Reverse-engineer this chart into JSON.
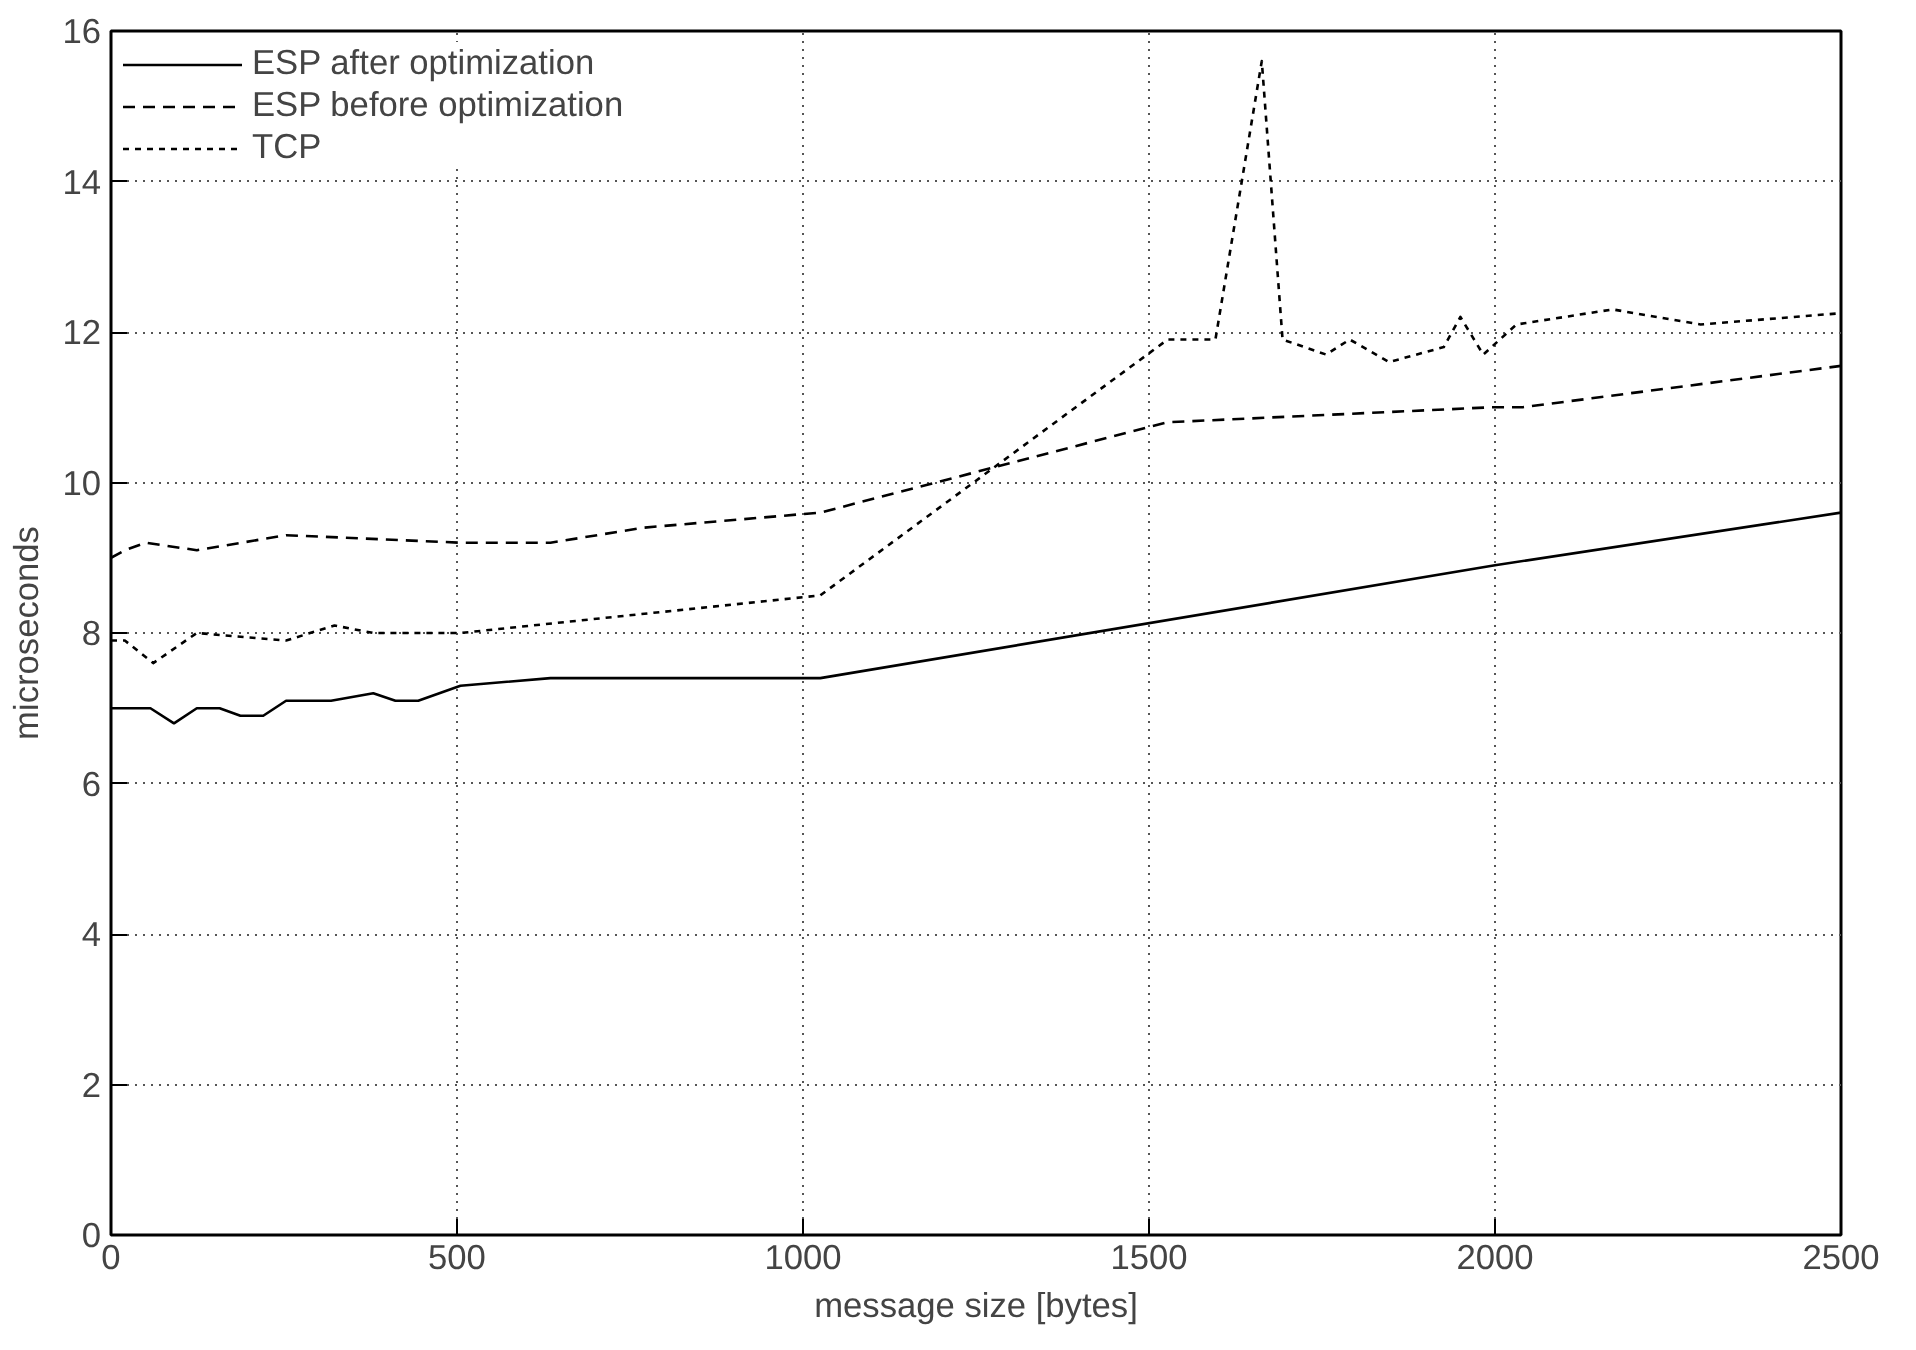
{
  "chart_data": {
    "type": "line",
    "xlabel": "message size [bytes]",
    "ylabel": "microseconds",
    "xlim": [
      0,
      2500
    ],
    "ylim": [
      0,
      16
    ],
    "xticks": [
      0,
      500,
      1000,
      1500,
      2000,
      2500
    ],
    "yticks": [
      0,
      2,
      4,
      6,
      8,
      10,
      12,
      14,
      16
    ],
    "grid": true,
    "legend": "top left",
    "marker": "none",
    "series": [
      {
        "name": "ESP after optimization",
        "color": "#000000",
        "line_style": "solid",
        "x": [
          0,
          57,
          91,
          124,
          157,
          187,
          220,
          253,
          318,
          379,
          411,
          444,
          505,
          635,
          1025,
          2000,
          2500
        ],
        "values": [
          7.0,
          7.0,
          6.8,
          7.0,
          7.0,
          6.9,
          6.9,
          7.1,
          7.1,
          7.2,
          7.1,
          7.1,
          7.3,
          7.4,
          7.4,
          8.9,
          9.6
        ]
      },
      {
        "name": "ESP before optimization",
        "color": "#000000",
        "line_style": "dashed",
        "x": [
          0,
          20,
          50,
          124,
          253,
          505,
          635,
          770,
          1025,
          1526,
          1995,
          2040,
          2500
        ],
        "values": [
          9.0,
          9.1,
          9.2,
          9.1,
          9.3,
          9.2,
          9.2,
          9.4,
          9.6,
          10.8,
          11.0,
          11.0,
          11.55
        ]
      },
      {
        "name": "TCP",
        "color": "#000000",
        "line_style": "dotted",
        "x": [
          0,
          20,
          61,
          124,
          253,
          323,
          379,
          505,
          1025,
          1527,
          1596,
          1663,
          1693,
          1756,
          1790,
          1847,
          1926,
          1950,
          1983,
          2031,
          2170,
          2297,
          2500
        ],
        "values": [
          7.9,
          7.9,
          7.6,
          8.0,
          7.9,
          8.1,
          8.0,
          8.0,
          8.5,
          11.9,
          11.9,
          15.6,
          11.9,
          11.7,
          11.9,
          11.6,
          11.8,
          12.2,
          11.7,
          12.1,
          12.3,
          12.1,
          12.25
        ]
      }
    ]
  }
}
